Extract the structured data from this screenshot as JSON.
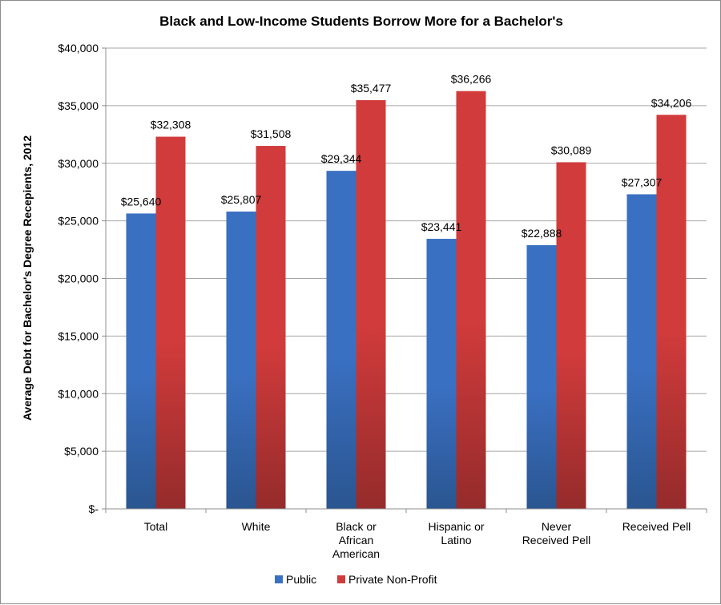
{
  "chart_data": {
    "type": "bar",
    "title": "Black and Low-Income Students Borrow More for a Bachelor's",
    "ylabel": "Average Debt for Bachelor's Degree Recepients, 2012",
    "xlabel": "",
    "ylim": [
      0,
      40000
    ],
    "yticks": [
      0,
      5000,
      10000,
      15000,
      20000,
      25000,
      30000,
      35000,
      40000
    ],
    "ytick_labels": [
      "$-",
      "$5,000",
      "$10,000",
      "$15,000",
      "$20,000",
      "$25,000",
      "$30,000",
      "$35,000",
      "$40,000"
    ],
    "grid": true,
    "legend_position": "bottom",
    "categories": [
      [
        "Total"
      ],
      [
        "White"
      ],
      [
        "Black or",
        "African",
        "American"
      ],
      [
        "Hispanic or",
        "Latino"
      ],
      [
        "Never",
        "Received Pell"
      ],
      [
        "Received Pell"
      ]
    ],
    "series": [
      {
        "name": "Public",
        "color": "#3a70c2",
        "color_dark": "#2a5590",
        "values": [
          25640,
          25807,
          29344,
          23441,
          22888,
          27307
        ],
        "labels": [
          "$25,640",
          "$25,807",
          "$29,344",
          "$23,441",
          "$22,888",
          "$27,307"
        ]
      },
      {
        "name": "Private Non-Profit",
        "color": "#d13b3b",
        "color_dark": "#952b2b",
        "values": [
          32308,
          31508,
          35477,
          36266,
          30089,
          34206
        ],
        "labels": [
          "$32,308",
          "$31,508",
          "$35,477",
          "$36,266",
          "$30,089",
          "$34,206"
        ]
      }
    ]
  }
}
